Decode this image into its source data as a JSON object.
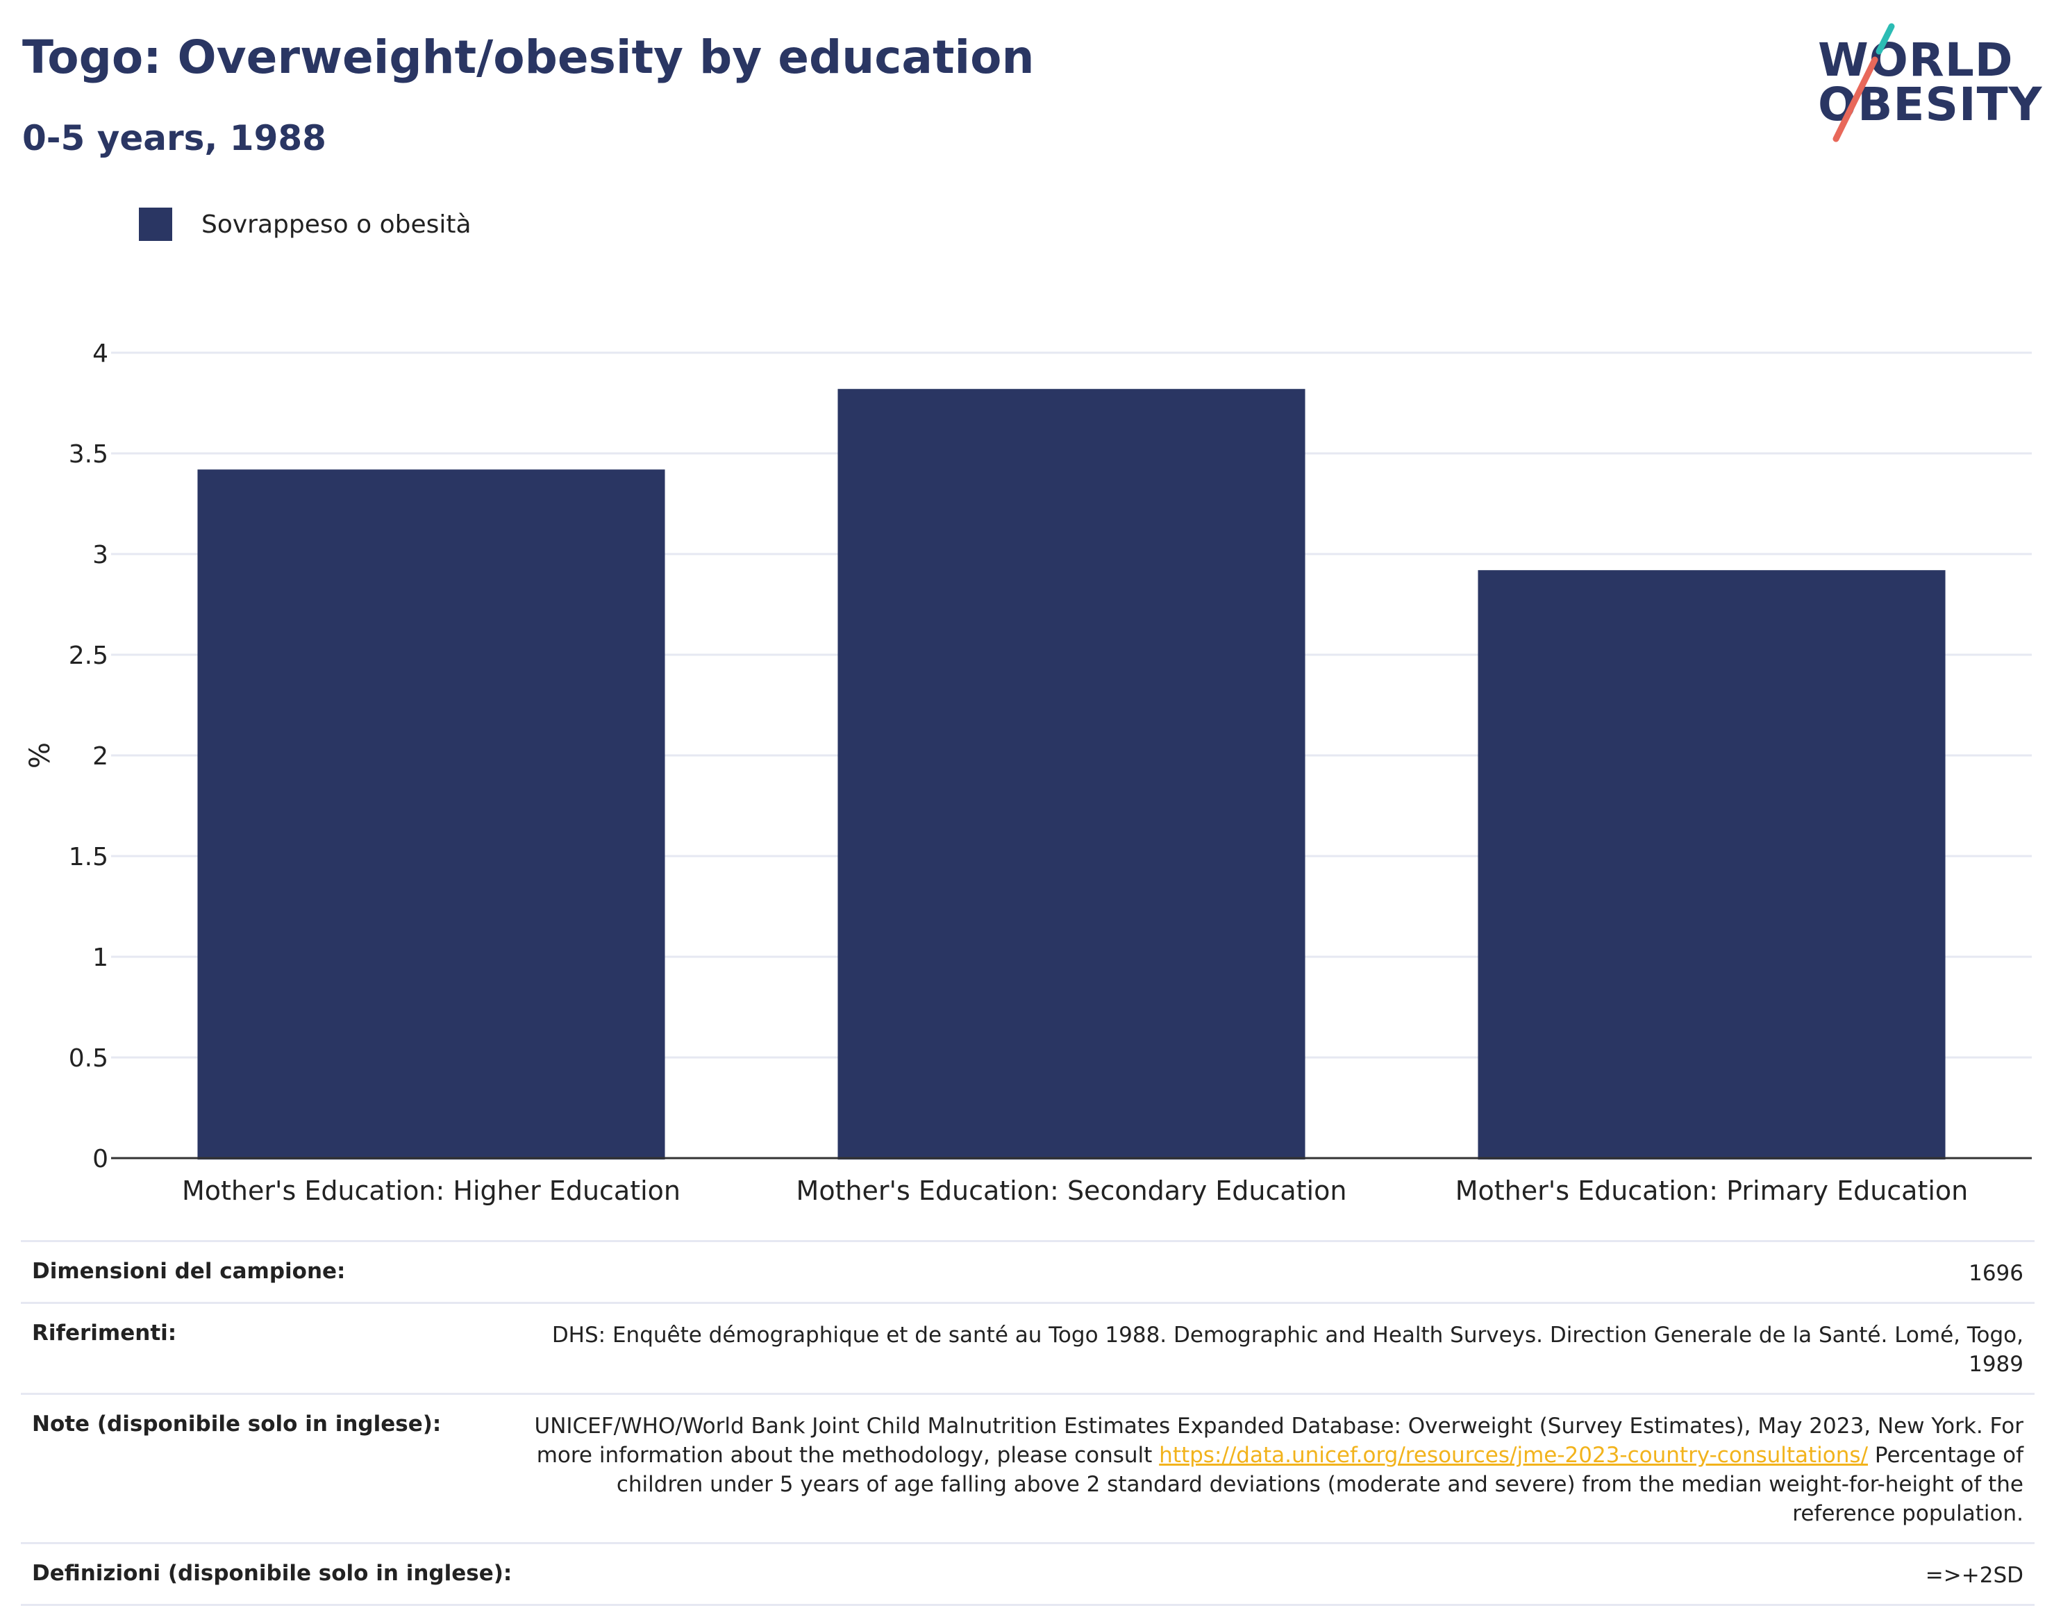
{
  "header": {
    "title": "Togo: Overweight/obesity by education",
    "subtitle": "0-5 years, 1988"
  },
  "logo": {
    "line1": "WORLD",
    "line2": "OBESITY"
  },
  "colors": {
    "bar": "#2a3663",
    "title": "#2a3663",
    "grid": "#e6e8f2",
    "link": "#f2b31c",
    "logo_teal": "#2bbcb4",
    "logo_coral": "#e8685a"
  },
  "chart_data": {
    "type": "bar",
    "title": "Togo: Overweight/obesity by education",
    "subtitle": "0-5 years, 1988",
    "categories": [
      "Mother's Education: Higher Education",
      "Mother's Education: Secondary Education",
      "Mother's Education: Primary Education"
    ],
    "series": [
      {
        "name": "Sovrappeso o obesità",
        "values": [
          3.42,
          3.82,
          2.92
        ]
      }
    ],
    "xlabel": "",
    "ylabel": "%",
    "ylim": [
      0,
      4
    ],
    "yticks": [
      "0",
      "0.5",
      "1",
      "1.5",
      "2",
      "2.5",
      "3",
      "3.5",
      "4"
    ],
    "grid": true,
    "legend_position": "top-left"
  },
  "info": {
    "sample_size": {
      "label": "Dimensioni del campione:",
      "value": "1696"
    },
    "references": {
      "label": "Riferimenti:",
      "value": "DHS: Enquête démographique et de santé au Togo 1988. Demographic and Health Surveys. Direction Generale de la Santé. Lomé, Togo, 1989"
    },
    "notes": {
      "label": "Note (disponibile solo in inglese):",
      "text_before": "UNICEF/WHO/World Bank Joint Child Malnutrition Estimates Expanded Database: Overweight (Survey Estimates), May 2023, New York. For more information about the methodology, please consult ",
      "link": "https://data.unicef.org/resources/jme-2023-country-consultations/",
      "text_after": " Percentage of children under 5 years of age falling above 2 standard deviations (moderate and severe) from the median weight-for-height of the reference population."
    },
    "definitions": {
      "label": "Definizioni (disponibile solo in inglese):",
      "value": "=>+2SD"
    }
  }
}
